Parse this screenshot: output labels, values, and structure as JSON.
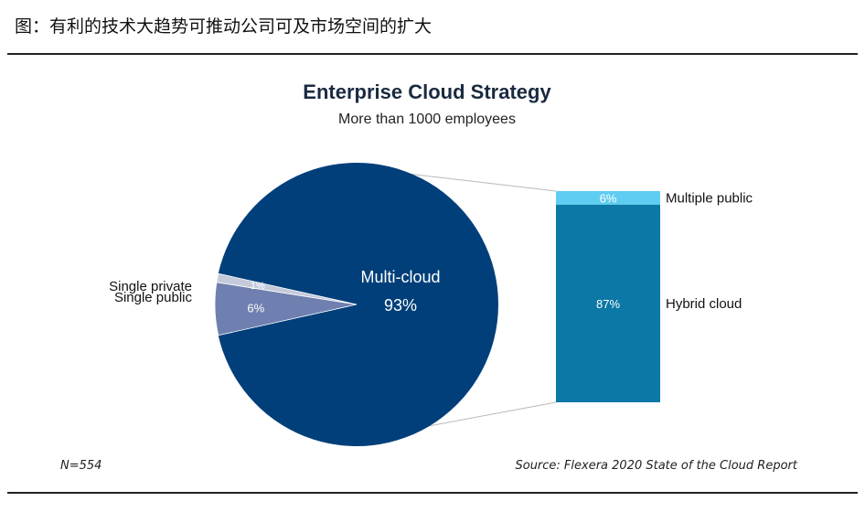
{
  "figure_caption": "图：有利的技术大趋势可推动公司可及市场空间的扩大",
  "chart_data": {
    "type": "pie",
    "title": "Enterprise Cloud Strategy",
    "subtitle": "More than 1000 employees",
    "pie": {
      "slices": [
        {
          "label": "Multi-cloud",
          "value": 93,
          "display": "93%",
          "color": "#003f7a"
        },
        {
          "label": "Single public",
          "value": 6,
          "display": "6%",
          "color": "#6f80b0"
        },
        {
          "label": "Single private",
          "value": 1,
          "display": "1%",
          "color": "#c4cada"
        }
      ]
    },
    "breakdown": {
      "of": "Multi-cloud",
      "segments": [
        {
          "label": "Multiple public",
          "value": 6,
          "display": "6%",
          "color": "#5fcdf1"
        },
        {
          "label": "Hybrid cloud",
          "value": 87,
          "display": "87%",
          "color": "#0b78a6"
        }
      ]
    },
    "footnote": "N=554",
    "source": "Source: Flexera 2020 State of the Cloud Report"
  }
}
